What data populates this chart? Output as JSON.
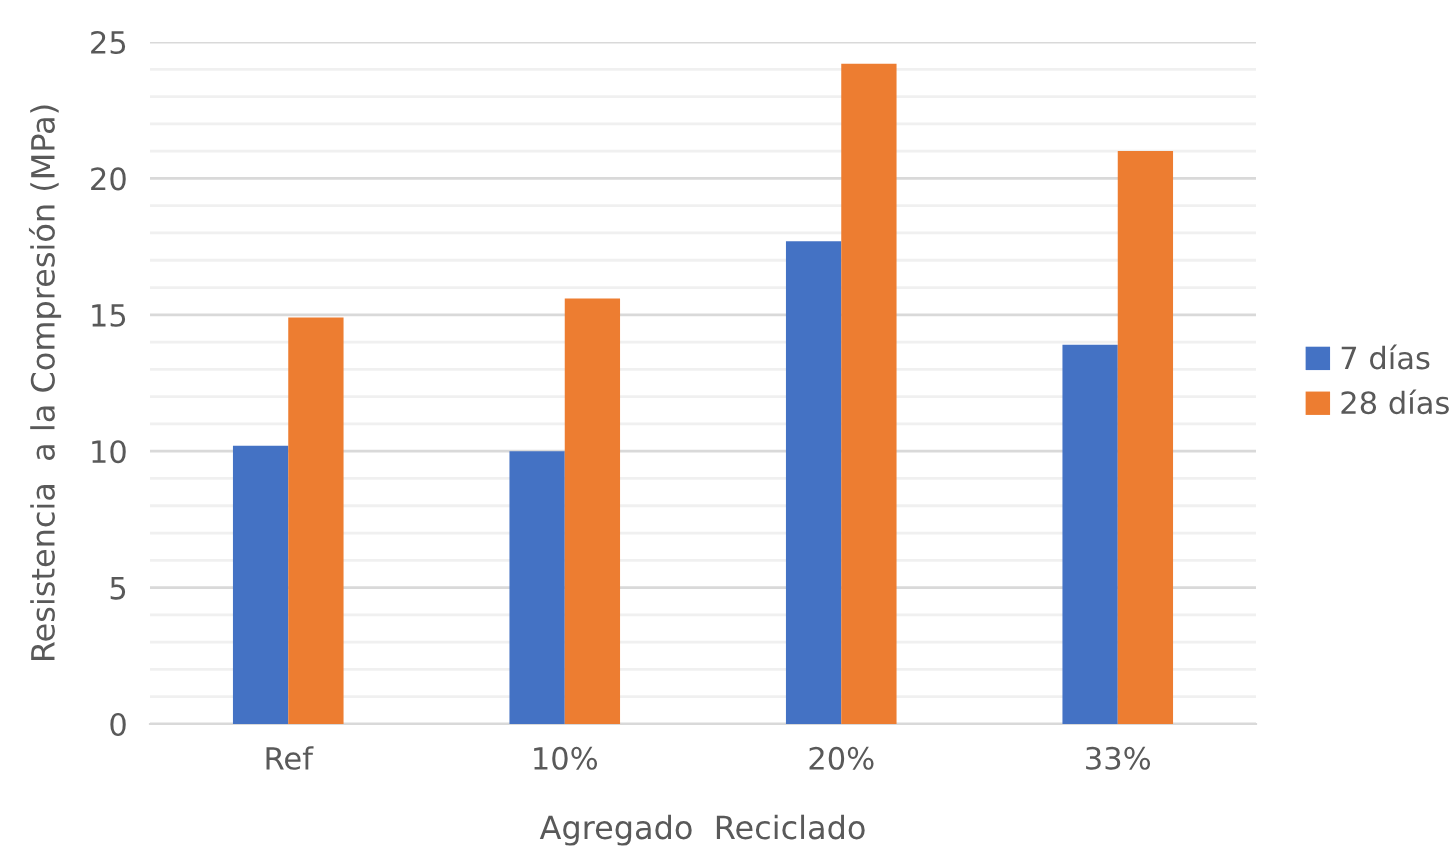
{
  "chart_data": {
    "type": "bar",
    "xlabel": "Agregado  Reciclado",
    "ylabel": "Resistencia  a la Compresión (MPa)",
    "categories": [
      "Ref",
      "10%",
      "20%",
      "33%"
    ],
    "series": [
      {
        "name": "7 días",
        "color": "#4472c4",
        "values": [
          10.2,
          10.0,
          17.7,
          13.9
        ]
      },
      {
        "name": "28 días",
        "color": "#ed7d31",
        "values": [
          14.9,
          15.6,
          24.2,
          21.0
        ]
      }
    ],
    "ylim": [
      0,
      25
    ],
    "yticks": [
      0,
      {
        "value": 1,
        "label": null
      },
      {
        "value": 2,
        "label": null
      },
      {
        "value": 3,
        "label": null
      },
      {
        "value": 4,
        "label": null
      },
      5,
      {
        "value": 6,
        "label": null
      },
      {
        "value": 7,
        "label": null
      },
      {
        "value": 8,
        "label": null
      },
      {
        "value": 9,
        "label": null
      },
      10,
      {
        "value": 11,
        "label": null
      },
      {
        "value": 12,
        "label": null
      },
      {
        "value": 13,
        "label": null
      },
      {
        "value": 14,
        "label": null
      },
      15,
      {
        "value": 16,
        "label": null
      },
      {
        "value": 17,
        "label": null
      },
      {
        "value": 18,
        "label": null
      },
      {
        "value": 19,
        "label": null
      },
      20,
      {
        "value": 21,
        "label": null
      },
      {
        "value": 22,
        "label": null
      },
      {
        "value": 23,
        "label": null
      },
      {
        "value": 24,
        "label": null
      },
      25
    ],
    "grid": "y",
    "legend": "right"
  }
}
